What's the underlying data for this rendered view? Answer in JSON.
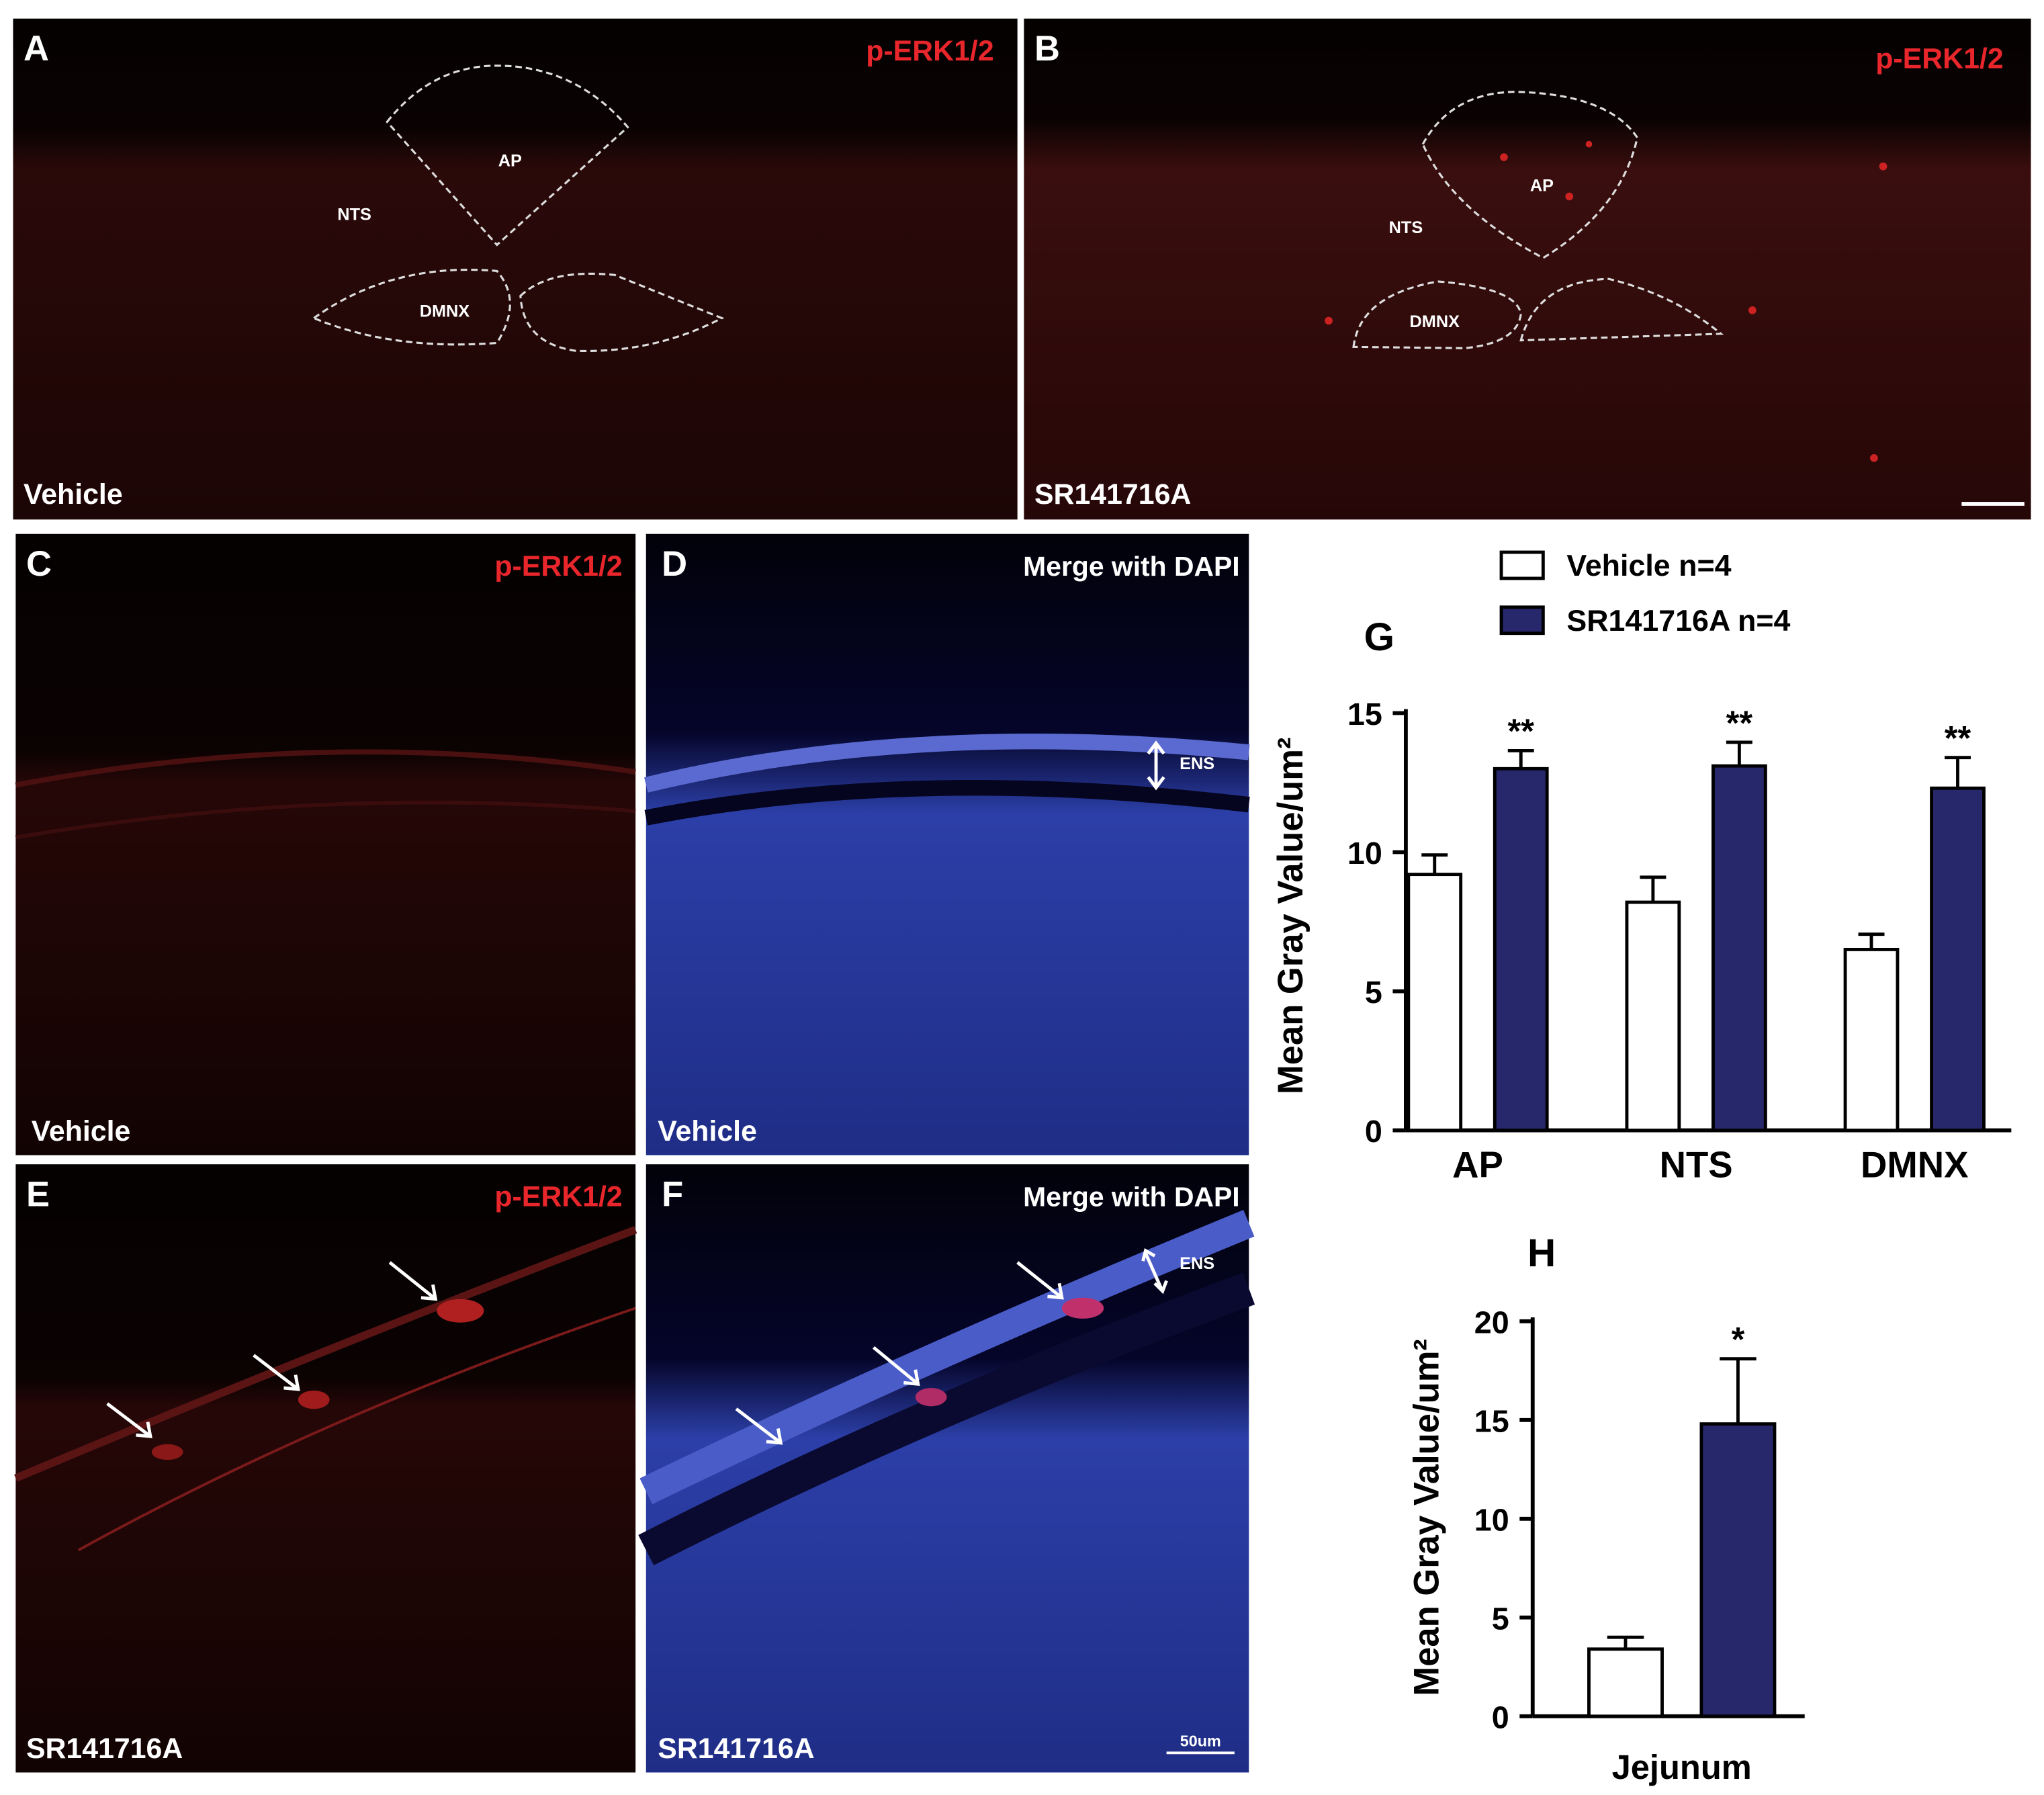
{
  "panels": [
    {
      "letter": "A",
      "marker": "p-ERK1/2",
      "condition": "Vehicle",
      "regions": [
        "AP",
        "NTS",
        "DMNX"
      ]
    },
    {
      "letter": "B",
      "marker": "p-ERK1/2",
      "condition": "SR141716A",
      "regions": [
        "AP",
        "NTS",
        "DMNX"
      ]
    },
    {
      "letter": "C",
      "marker": "p-ERK1/2",
      "condition": "Vehicle"
    },
    {
      "letter": "D",
      "marker": "Merge with DAPI",
      "condition": "Vehicle",
      "region": "ENS"
    },
    {
      "letter": "E",
      "marker": "p-ERK1/2",
      "condition": "SR141716A"
    },
    {
      "letter": "F",
      "marker": "Merge with DAPI",
      "condition": "SR141716A",
      "region": "ENS",
      "scale_bar": "50um"
    }
  ],
  "chart_data": [
    {
      "type": "bar",
      "panel_label": "G",
      "ylabel": "Mean Gray Value/um²",
      "categories": [
        "AP",
        "NTS",
        "DMNX"
      ],
      "series": [
        {
          "name": "Vehicle n=4",
          "color": "#ffffff",
          "values": [
            9.2,
            8.2,
            6.5
          ],
          "errors": [
            0.7,
            0.9,
            0.55
          ]
        },
        {
          "name": "SR141716A n=4",
          "color": "#27276b",
          "values": [
            13.0,
            13.1,
            12.3
          ],
          "errors": [
            0.65,
            0.85,
            1.1
          ]
        }
      ],
      "annotations": [
        "**",
        "**",
        "**"
      ],
      "ylim": [
        0,
        15
      ],
      "yticks": [
        0,
        5,
        10,
        15
      ],
      "legend": true
    },
    {
      "type": "bar",
      "panel_label": "H",
      "ylabel": "Mean Gray Value/um²",
      "categories": [
        "Jejunum"
      ],
      "series": [
        {
          "color": "#ffffff",
          "values": [
            3.4
          ],
          "errors": [
            0.6
          ]
        },
        {
          "color": "#27276b",
          "values": [
            14.8
          ],
          "errors": [
            3.3
          ]
        }
      ],
      "annotations": [
        "*"
      ],
      "ylim": [
        0,
        20
      ],
      "yticks": [
        0,
        5,
        10,
        15,
        20
      ],
      "legend": false
    }
  ]
}
